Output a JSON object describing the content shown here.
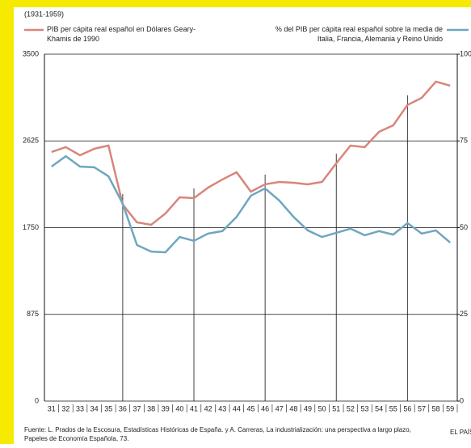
{
  "chart_data": {
    "type": "line",
    "subtitle": "(1931-1959)",
    "source_line1": "Fuente: L. Prados de la Escosura, Estadísticas Históricas de España. y A. Carreras, La industrialización: una perspectiva a largo plazo,",
    "source_line2": "Papeles de Economía Española, 73.",
    "credit": "EL PAÍS",
    "categories": [
      "31",
      "32",
      "33",
      "34",
      "35",
      "36",
      "37",
      "38",
      "39",
      "40",
      "41",
      "42",
      "43",
      "44",
      "45",
      "46",
      "47",
      "48",
      "49",
      "50",
      "51",
      "52",
      "53",
      "54",
      "55",
      "56",
      "57",
      "58",
      "59"
    ],
    "series": [
      {
        "name": "PIB per cápita real español en Dólares Geary-Khamis de 1990",
        "color": "#d9857a",
        "axis": "y",
        "values": [
          2513,
          2562,
          2480,
          2546,
          2578,
          1983,
          1803,
          1779,
          1893,
          2056,
          2048,
          2154,
          2236,
          2309,
          2113,
          2187,
          2211,
          2203,
          2187,
          2211,
          2399,
          2578,
          2562,
          2717,
          2782,
          2987,
          3060,
          3223,
          3182
        ]
      },
      {
        "name": "% del PIB per cápita real español sobre la media de Italia, Francia, Alemania y Reino Unido",
        "color": "#6fa6c0",
        "axis": "y2",
        "values": [
          67.6,
          70.6,
          67.6,
          67.4,
          64.8,
          56.9,
          45.0,
          43.1,
          42.9,
          47.3,
          46.2,
          48.3,
          49.0,
          53.1,
          59.2,
          61.3,
          57.8,
          53.1,
          49.2,
          47.3,
          48.5,
          49.7,
          47.8,
          49.0,
          48.0,
          51.3,
          48.3,
          49.2,
          45.7
        ]
      }
    ],
    "ylim": [
      0,
      3500
    ],
    "yticks": [
      0,
      875,
      1750,
      2625,
      3500
    ],
    "y2lim": [
      0,
      100
    ],
    "y2ticks": [
      0,
      25,
      50,
      75,
      100
    ],
    "grid": true,
    "vlines": [
      "36",
      "41",
      "46",
      "51",
      "56"
    ]
  }
}
